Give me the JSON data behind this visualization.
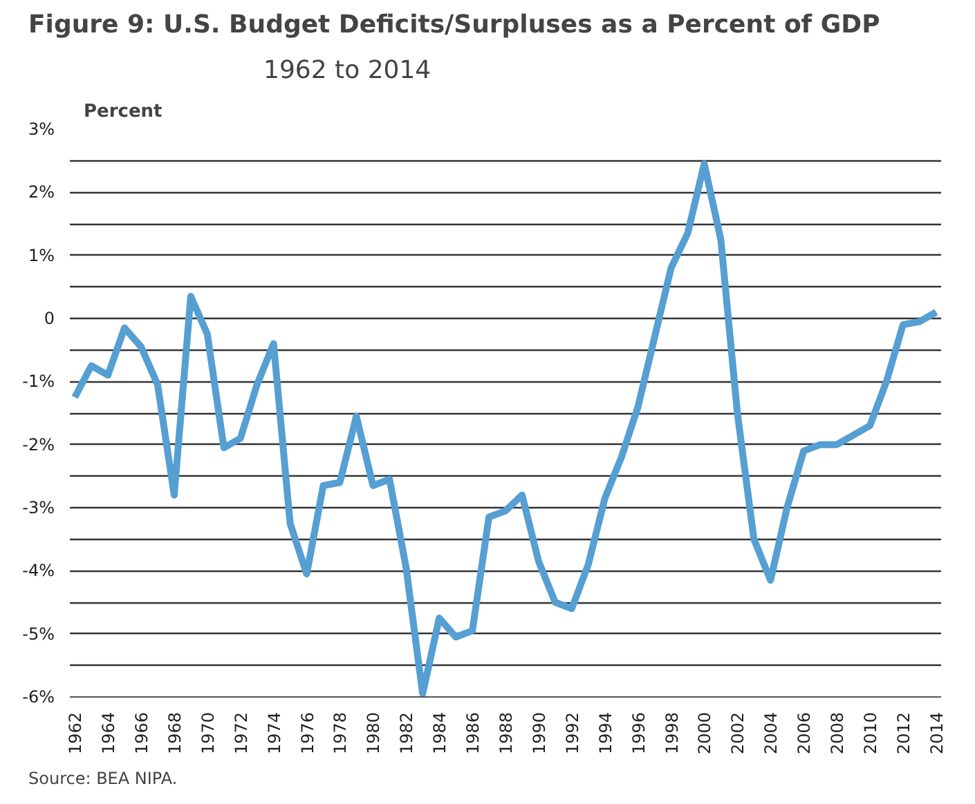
{
  "chart_data": {
    "type": "line",
    "title": "Figure 9:  U.S. Budget Deficits/Surpluses as a Percent of GDP",
    "subtitle": "1962 to 2014",
    "ylabel": "Percent",
    "annotations": [
      "Source: BEA NIPA."
    ],
    "x": [
      1962,
      1963,
      1964,
      1965,
      1966,
      1967,
      1968,
      1969,
      1970,
      1971,
      1972,
      1973,
      1974,
      1975,
      1976,
      1977,
      1978,
      1979,
      1980,
      1981,
      1982,
      1983,
      1984,
      1985,
      1986,
      1987,
      1988,
      1989,
      1990,
      1991,
      1992,
      1993,
      1994,
      1995,
      1996,
      1997,
      1998,
      1999,
      2000,
      2001,
      2002,
      2003,
      2004,
      2005,
      2006,
      2007,
      2008,
      2009,
      2010,
      2011,
      2012,
      2013,
      2014
    ],
    "series": [
      {
        "color": "#559fd3",
        "values": [
          -1.25,
          -0.75,
          -0.9,
          -0.15,
          -0.45,
          -1.05,
          -2.8,
          0.35,
          -0.25,
          -2.05,
          -1.9,
          -1.05,
          -0.4,
          -3.25,
          -4.05,
          -2.65,
          -2.6,
          -1.55,
          -2.65,
          -2.55,
          -3.95,
          -5.95,
          -4.75,
          -5.05,
          -4.95,
          -3.15,
          -3.05,
          -2.8,
          -3.85,
          -4.5,
          -4.6,
          -3.9,
          -2.85,
          -2.2,
          -1.4,
          -0.3,
          0.8,
          1.35,
          2.45,
          1.25,
          -1.5,
          -3.5,
          -4.15,
          -3.0,
          -2.1,
          -2.0,
          -2.0,
          -1.85,
          -1.7,
          -1.0,
          -0.1,
          -0.05,
          0.1
        ]
      }
    ],
    "xlim": [
      1961.7,
      2014.3
    ],
    "xticks": [
      1962,
      1964,
      1966,
      1968,
      1970,
      1972,
      1974,
      1976,
      1978,
      1980,
      1982,
      1984,
      1986,
      1988,
      1990,
      1992,
      1994,
      1996,
      1998,
      2000,
      2002,
      2004,
      2006,
      2008,
      2010,
      2012,
      2014
    ],
    "ylim": [
      -6,
      3
    ],
    "yticks": [
      {
        "value": 3,
        "label": "3%"
      },
      {
        "value": 2.5,
        "label": null
      },
      {
        "value": 2,
        "label": "2%"
      },
      {
        "value": 1.5,
        "label": null
      },
      {
        "value": 1,
        "label": "1%"
      },
      {
        "value": 0.5,
        "label": null
      },
      0,
      {
        "value": -0.5,
        "label": null
      },
      {
        "value": -1,
        "label": "-1%"
      },
      {
        "value": -1.5,
        "label": null
      },
      {
        "value": -2,
        "label": "-2%"
      },
      {
        "value": -2.5,
        "label": null
      },
      {
        "value": -3,
        "label": "-3%"
      },
      {
        "value": -3.5,
        "label": null
      },
      {
        "value": -4,
        "label": "-4%"
      },
      {
        "value": -4.5,
        "label": null
      },
      {
        "value": -5,
        "label": "-5%"
      },
      {
        "value": -5.5,
        "label": null
      },
      {
        "value": -6,
        "label": "-6%"
      }
    ],
    "grid": "y",
    "marker": "none",
    "line_style": "solid"
  }
}
